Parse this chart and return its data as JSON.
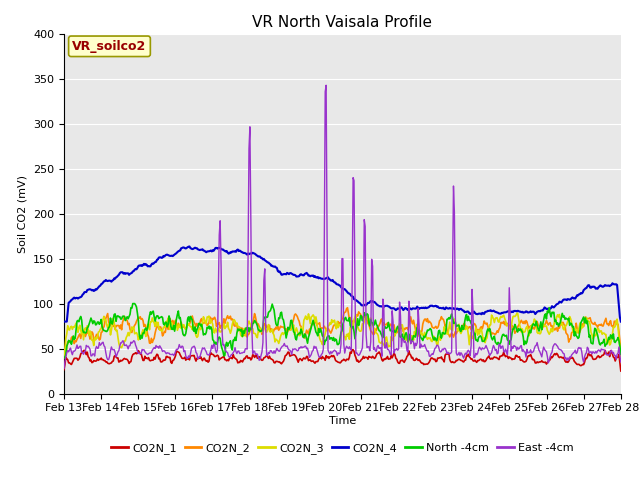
{
  "title": "VR North Vaisala Profile",
  "ylabel": "Soil CO2 (mV)",
  "xlabel": "Time",
  "annotation": "VR_soilco2",
  "ylim": [
    0,
    400
  ],
  "x_tick_labels": [
    "Feb 13",
    "Feb 14",
    "Feb 15",
    "Feb 16",
    "Feb 17",
    "Feb 18",
    "Feb 19",
    "Feb 20",
    "Feb 21",
    "Feb 22",
    "Feb 23",
    "Feb 24",
    "Feb 25",
    "Feb 26",
    "Feb 27",
    "Feb 28"
  ],
  "series_colors": [
    "#cc0000",
    "#ff8800",
    "#dddd00",
    "#0000cc",
    "#00cc00",
    "#9933cc"
  ],
  "series_names": [
    "CO2N_1",
    "CO2N_2",
    "CO2N_3",
    "CO2N_4",
    "North -4cm",
    "East -4cm"
  ],
  "bg_color": "#e8e8e8",
  "title_fontsize": 11,
  "legend_fontsize": 8,
  "annotation_bg": "#ffffcc",
  "annotation_border": "#999900",
  "annotation_color": "#990000"
}
